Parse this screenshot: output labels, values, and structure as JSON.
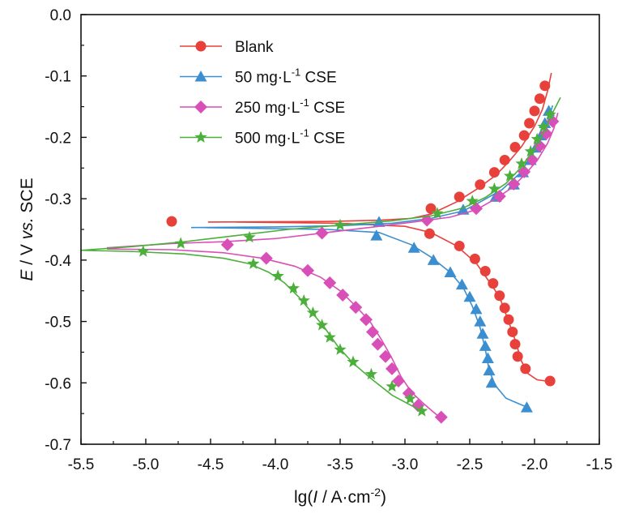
{
  "chart_data": {
    "type": "line",
    "xlabel": "lg(I / A·cm⁻²)",
    "xlabel_parts": {
      "pre": "lg(",
      "italic": "I",
      "mid": " / A·cm",
      "sup": "-2",
      "post": ")"
    },
    "ylabel": "E / V vs. SCE",
    "ylabel_parts": {
      "italic1": "E",
      "mid": " / V ",
      "italic2": "vs.",
      "post": " SCE"
    },
    "xlim": [
      -5.5,
      -1.5
    ],
    "ylim": [
      -0.7,
      0.0
    ],
    "xticks": [
      -5.5,
      -5.0,
      -4.5,
      -4.0,
      -3.5,
      -3.0,
      -2.5,
      -2.0,
      -1.5
    ],
    "xtick_labels": [
      "-5.5",
      "-5.0",
      "-4.5",
      "-4.0",
      "-3.5",
      "-3.0",
      "-2.5",
      "-2.0",
      "-1.5"
    ],
    "yticks": [
      0.0,
      -0.1,
      -0.2,
      -0.3,
      -0.4,
      -0.5,
      -0.6,
      -0.7
    ],
    "ytick_labels": [
      "0.0",
      "-0.1",
      "-0.2",
      "-0.3",
      "-0.4",
      "-0.5",
      "-0.6",
      "-0.7"
    ],
    "grid": false,
    "legend_position": "top-left",
    "series": [
      {
        "name": "Blank",
        "legend": {
          "base": "Blank",
          "sup": "",
          "post": ""
        },
        "color": "#e8413c",
        "marker": "circle",
        "fit": [
          [
            -4.52,
            -0.338
          ],
          [
            -3.6,
            -0.337
          ],
          [
            -3.2,
            -0.335
          ],
          [
            -2.95,
            -0.332
          ],
          [
            -2.8,
            -0.325
          ],
          [
            -2.6,
            -0.305
          ],
          [
            -2.45,
            -0.285
          ],
          [
            -2.3,
            -0.262
          ],
          [
            -2.2,
            -0.24
          ],
          [
            -2.1,
            -0.215
          ],
          [
            -2.0,
            -0.182
          ],
          [
            -1.94,
            -0.155
          ],
          [
            -1.9,
            -0.125
          ],
          [
            -1.87,
            -0.095
          ],
          null,
          [
            -4.3,
            -0.338
          ],
          [
            -3.5,
            -0.34
          ],
          [
            -3.0,
            -0.345
          ],
          [
            -2.8,
            -0.355
          ],
          [
            -2.6,
            -0.377
          ],
          [
            -2.45,
            -0.405
          ],
          [
            -2.35,
            -0.435
          ],
          [
            -2.27,
            -0.46
          ],
          [
            -2.2,
            -0.5
          ],
          [
            -2.15,
            -0.53
          ],
          [
            -2.1,
            -0.565
          ],
          [
            -2.05,
            -0.585
          ],
          [
            -1.98,
            -0.595
          ],
          [
            -1.88,
            -0.598
          ]
        ],
        "points": [
          [
            -4.8,
            -0.337
          ],
          [
            -2.8,
            -0.316
          ],
          [
            -2.58,
            -0.297
          ],
          [
            -2.42,
            -0.277
          ],
          [
            -2.31,
            -0.257
          ],
          [
            -2.23,
            -0.237
          ],
          [
            -2.15,
            -0.216
          ],
          [
            -2.08,
            -0.197
          ],
          [
            -2.04,
            -0.177
          ],
          [
            -2.0,
            -0.157
          ],
          [
            -1.96,
            -0.137
          ],
          [
            -1.92,
            -0.116
          ],
          [
            -2.81,
            -0.357
          ],
          [
            -2.58,
            -0.377
          ],
          [
            -2.46,
            -0.398
          ],
          [
            -2.38,
            -0.418
          ],
          [
            -2.32,
            -0.438
          ],
          [
            -2.27,
            -0.458
          ],
          [
            -2.23,
            -0.478
          ],
          [
            -2.2,
            -0.497
          ],
          [
            -2.17,
            -0.517
          ],
          [
            -2.15,
            -0.537
          ],
          [
            -2.13,
            -0.557
          ],
          [
            -2.07,
            -0.577
          ],
          [
            -1.88,
            -0.597
          ]
        ]
      },
      {
        "name": "50 mg·L⁻¹ CSE",
        "legend": {
          "base": "50 mg·L",
          "sup": "-1",
          "post": " CSE"
        },
        "color": "#3b8fd0",
        "marker": "triangle",
        "fit": [
          [
            -4.65,
            -0.347
          ],
          [
            -4.0,
            -0.346
          ],
          [
            -3.5,
            -0.344
          ],
          [
            -3.1,
            -0.34
          ],
          [
            -2.8,
            -0.332
          ],
          [
            -2.55,
            -0.32
          ],
          [
            -2.4,
            -0.303
          ],
          [
            -2.25,
            -0.285
          ],
          [
            -2.12,
            -0.26
          ],
          [
            -2.02,
            -0.23
          ],
          [
            -1.96,
            -0.205
          ],
          [
            -1.9,
            -0.175
          ],
          [
            -1.86,
            -0.148
          ],
          null,
          [
            -4.6,
            -0.347
          ],
          [
            -3.6,
            -0.35
          ],
          [
            -3.2,
            -0.355
          ],
          [
            -2.95,
            -0.375
          ],
          [
            -2.8,
            -0.395
          ],
          [
            -2.65,
            -0.42
          ],
          [
            -2.55,
            -0.445
          ],
          [
            -2.48,
            -0.475
          ],
          [
            -2.42,
            -0.51
          ],
          [
            -2.38,
            -0.545
          ],
          [
            -2.35,
            -0.58
          ],
          [
            -2.3,
            -0.605
          ],
          [
            -2.22,
            -0.625
          ],
          [
            -2.1,
            -0.636
          ],
          [
            -2.05,
            -0.64
          ]
        ],
        "points": [
          [
            -3.2,
            -0.338
          ],
          [
            -2.55,
            -0.318
          ],
          [
            -2.3,
            -0.297
          ],
          [
            -2.16,
            -0.277
          ],
          [
            -2.09,
            -0.257
          ],
          [
            -2.03,
            -0.237
          ],
          [
            -1.99,
            -0.217
          ],
          [
            -1.95,
            -0.197
          ],
          [
            -1.92,
            -0.177
          ],
          [
            -1.89,
            -0.157
          ],
          [
            -3.22,
            -0.36
          ],
          [
            -2.93,
            -0.38
          ],
          [
            -2.78,
            -0.4
          ],
          [
            -2.65,
            -0.42
          ],
          [
            -2.56,
            -0.44
          ],
          [
            -2.5,
            -0.46
          ],
          [
            -2.45,
            -0.48
          ],
          [
            -2.42,
            -0.5
          ],
          [
            -2.4,
            -0.52
          ],
          [
            -2.38,
            -0.54
          ],
          [
            -2.36,
            -0.56
          ],
          [
            -2.35,
            -0.58
          ],
          [
            -2.33,
            -0.6
          ],
          [
            -2.06,
            -0.64
          ]
        ]
      },
      {
        "name": "250 mg·L⁻¹ CSE",
        "legend": {
          "base": "250 mg·L",
          "sup": "-1",
          "post": " CSE"
        },
        "color": "#d94fb8",
        "marker": "diamond",
        "fit": [
          [
            -5.3,
            -0.38
          ],
          [
            -4.8,
            -0.373
          ],
          [
            -4.4,
            -0.37
          ],
          [
            -4.0,
            -0.365
          ],
          [
            -3.6,
            -0.355
          ],
          [
            -3.2,
            -0.345
          ],
          [
            -2.9,
            -0.337
          ],
          [
            -2.65,
            -0.33
          ],
          [
            -2.45,
            -0.318
          ],
          [
            -2.3,
            -0.3
          ],
          [
            -2.18,
            -0.283
          ],
          [
            -2.08,
            -0.262
          ],
          [
            -1.98,
            -0.238
          ],
          [
            -1.9,
            -0.21
          ],
          [
            -1.85,
            -0.185
          ],
          [
            -1.82,
            -0.16
          ],
          null,
          [
            -5.3,
            -0.382
          ],
          [
            -4.8,
            -0.383
          ],
          [
            -4.4,
            -0.388
          ],
          [
            -4.1,
            -0.397
          ],
          [
            -3.85,
            -0.41
          ],
          [
            -3.65,
            -0.428
          ],
          [
            -3.5,
            -0.45
          ],
          [
            -3.38,
            -0.475
          ],
          [
            -3.27,
            -0.5
          ],
          [
            -3.18,
            -0.53
          ],
          [
            -3.1,
            -0.56
          ],
          [
            -3.03,
            -0.59
          ],
          [
            -2.95,
            -0.615
          ],
          [
            -2.85,
            -0.635
          ],
          [
            -2.75,
            -0.653
          ]
        ],
        "points": [
          [
            -4.37,
            -0.375
          ],
          [
            -3.64,
            -0.356
          ],
          [
            -2.83,
            -0.335
          ],
          [
            -2.45,
            -0.316
          ],
          [
            -2.27,
            -0.296
          ],
          [
            -2.16,
            -0.276
          ],
          [
            -2.08,
            -0.256
          ],
          [
            -2.02,
            -0.236
          ],
          [
            -1.96,
            -0.214
          ],
          [
            -1.91,
            -0.194
          ],
          [
            -1.86,
            -0.174
          ],
          [
            -4.07,
            -0.397
          ],
          [
            -3.75,
            -0.417
          ],
          [
            -3.58,
            -0.437
          ],
          [
            -3.48,
            -0.457
          ],
          [
            -3.38,
            -0.477
          ],
          [
            -3.3,
            -0.497
          ],
          [
            -3.25,
            -0.517
          ],
          [
            -3.21,
            -0.537
          ],
          [
            -3.15,
            -0.557
          ],
          [
            -3.1,
            -0.577
          ],
          [
            -3.05,
            -0.597
          ],
          [
            -2.97,
            -0.617
          ],
          [
            -2.9,
            -0.637
          ],
          [
            -2.72,
            -0.656
          ]
        ]
      },
      {
        "name": "500 mg·L⁻¹ CSE",
        "legend": {
          "base": "500 mg·L",
          "sup": "-1",
          "post": " CSE"
        },
        "color": "#4caf3c",
        "marker": "star",
        "fit": [
          [
            -5.5,
            -0.384
          ],
          [
            -5.1,
            -0.378
          ],
          [
            -4.7,
            -0.37
          ],
          [
            -4.3,
            -0.36
          ],
          [
            -3.9,
            -0.35
          ],
          [
            -3.5,
            -0.343
          ],
          [
            -3.1,
            -0.336
          ],
          [
            -2.8,
            -0.328
          ],
          [
            -2.55,
            -0.315
          ],
          [
            -2.38,
            -0.298
          ],
          [
            -2.22,
            -0.275
          ],
          [
            -2.1,
            -0.248
          ],
          [
            -2.0,
            -0.218
          ],
          [
            -1.92,
            -0.188
          ],
          [
            -1.86,
            -0.16
          ],
          [
            -1.8,
            -0.135
          ],
          null,
          [
            -5.5,
            -0.384
          ],
          [
            -5.1,
            -0.386
          ],
          [
            -4.7,
            -0.39
          ],
          [
            -4.4,
            -0.397
          ],
          [
            -4.2,
            -0.406
          ],
          [
            -4.05,
            -0.42
          ],
          [
            -3.93,
            -0.437
          ],
          [
            -3.82,
            -0.46
          ],
          [
            -3.72,
            -0.485
          ],
          [
            -3.62,
            -0.51
          ],
          [
            -3.52,
            -0.54
          ],
          [
            -3.4,
            -0.568
          ],
          [
            -3.25,
            -0.595
          ],
          [
            -3.1,
            -0.62
          ],
          [
            -2.95,
            -0.637
          ],
          [
            -2.85,
            -0.648
          ]
        ],
        "points": [
          [
            -4.73,
            -0.373
          ],
          [
            -4.2,
            -0.363
          ],
          [
            -3.5,
            -0.343
          ],
          [
            -2.75,
            -0.324
          ],
          [
            -2.48,
            -0.304
          ],
          [
            -2.31,
            -0.284
          ],
          [
            -2.19,
            -0.263
          ],
          [
            -2.1,
            -0.243
          ],
          [
            -2.03,
            -0.223
          ],
          [
            -1.98,
            -0.203
          ],
          [
            -1.93,
            -0.183
          ],
          [
            -1.88,
            -0.163
          ],
          [
            -5.02,
            -0.386
          ],
          [
            -4.17,
            -0.406
          ],
          [
            -3.98,
            -0.426
          ],
          [
            -3.86,
            -0.446
          ],
          [
            -3.78,
            -0.466
          ],
          [
            -3.71,
            -0.486
          ],
          [
            -3.64,
            -0.506
          ],
          [
            -3.58,
            -0.526
          ],
          [
            -3.5,
            -0.546
          ],
          [
            -3.4,
            -0.566
          ],
          [
            -3.26,
            -0.586
          ],
          [
            -3.1,
            -0.606
          ],
          [
            -2.96,
            -0.626
          ],
          [
            -2.87,
            -0.646
          ]
        ]
      }
    ]
  }
}
